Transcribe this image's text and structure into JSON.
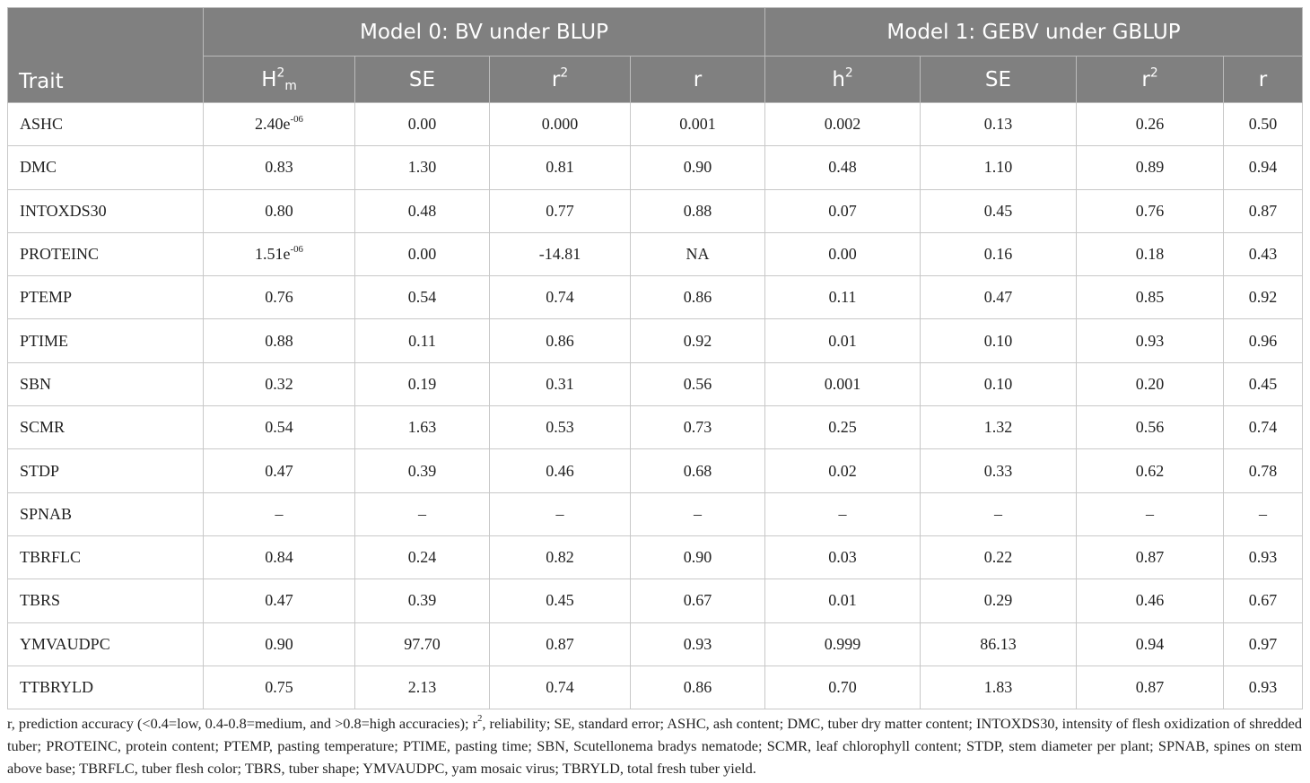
{
  "header": {
    "trait": "Trait",
    "groups": [
      "Model 0: BV under BLUP",
      "Model 1: GEBV under GBLUP"
    ],
    "columns": [
      {
        "text": "H",
        "sup": "2",
        "sub": "m"
      },
      {
        "text": "SE"
      },
      {
        "text": "r",
        "sup": "2"
      },
      {
        "text": "r"
      },
      {
        "text": "h",
        "sup": "2"
      },
      {
        "text": "SE"
      },
      {
        "text": "r",
        "sup": "2"
      },
      {
        "text": "r"
      }
    ]
  },
  "rows": [
    {
      "trait": "ASHC",
      "cells": [
        {
          "text": "2.40e",
          "sup": "-06"
        },
        "0.00",
        "0.000",
        "0.001",
        "0.002",
        "0.13",
        "0.26",
        "0.50"
      ]
    },
    {
      "trait": "DMC",
      "cells": [
        "0.83",
        "1.30",
        "0.81",
        "0.90",
        "0.48",
        "1.10",
        "0.89",
        "0.94"
      ]
    },
    {
      "trait": "INTOXDS30",
      "cells": [
        "0.80",
        "0.48",
        "0.77",
        "0.88",
        "0.07",
        "0.45",
        "0.76",
        "0.87"
      ]
    },
    {
      "trait": "PROTEINC",
      "cells": [
        {
          "text": "1.51e",
          "sup": "-06"
        },
        "0.00",
        "-14.81",
        "NA",
        "0.00",
        "0.16",
        "0.18",
        "0.43"
      ]
    },
    {
      "trait": "PTEMP",
      "cells": [
        "0.76",
        "0.54",
        "0.74",
        "0.86",
        "0.11",
        "0.47",
        "0.85",
        "0.92"
      ]
    },
    {
      "trait": "PTIME",
      "cells": [
        "0.88",
        "0.11",
        "0.86",
        "0.92",
        "0.01",
        "0.10",
        "0.93",
        "0.96"
      ]
    },
    {
      "trait": "SBN",
      "cells": [
        "0.32",
        "0.19",
        "0.31",
        "0.56",
        "0.001",
        "0.10",
        "0.20",
        "0.45"
      ]
    },
    {
      "trait": "SCMR",
      "cells": [
        "0.54",
        "1.63",
        "0.53",
        "0.73",
        "0.25",
        "1.32",
        "0.56",
        "0.74"
      ]
    },
    {
      "trait": "STDP",
      "cells": [
        "0.47",
        "0.39",
        "0.46",
        "0.68",
        "0.02",
        "0.33",
        "0.62",
        "0.78"
      ]
    },
    {
      "trait": "SPNAB",
      "cells": [
        "–",
        "–",
        "–",
        "–",
        "–",
        "–",
        "–",
        "–"
      ]
    },
    {
      "trait": "TBRFLC",
      "cells": [
        "0.84",
        "0.24",
        "0.82",
        "0.90",
        "0.03",
        "0.22",
        "0.87",
        "0.93"
      ]
    },
    {
      "trait": "TBRS",
      "cells": [
        "0.47",
        "0.39",
        "0.45",
        "0.67",
        "0.01",
        "0.29",
        "0.46",
        "0.67"
      ]
    },
    {
      "trait": "YMVAUDPC",
      "cells": [
        "0.90",
        "97.70",
        "0.87",
        "0.93",
        "0.999",
        "86.13",
        "0.94",
        "0.97"
      ]
    },
    {
      "trait": "TTBRYLD",
      "cells": [
        "0.75",
        "2.13",
        "0.74",
        "0.86",
        "0.70",
        "1.83",
        "0.87",
        "0.93"
      ]
    }
  ],
  "footnote": {
    "before": "r, prediction accuracy (<0.4=low, 0.4-0.8=medium, and >0.8=high accuracies); r",
    "sup": "2",
    "after": ", reliability; SE, standard error; ASHC, ash content; DMC, tuber dry matter content; INTOXDS30, intensity of flesh oxidization of shredded tuber; PROTEINC, protein content; PTEMP, pasting temperature; PTIME, pasting time; SBN, Scutellonema bradys nematode; SCMR, leaf chlorophyll content; STDP, stem diameter per plant; SPNAB, spines on stem above base; TBRFLC, tuber flesh color; TBRS, tuber shape; YMVAUDPC, yam mosaic virus; TBRYLD, total fresh tuber yield."
  }
}
